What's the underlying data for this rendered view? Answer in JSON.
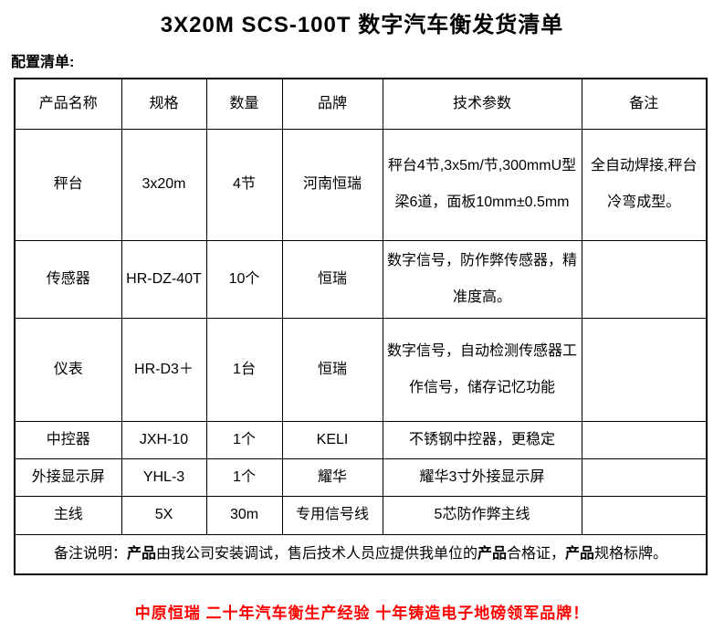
{
  "page": {
    "title": "3X20M SCS-100T 数字汽车衡发货清单",
    "section_label": "配置清单:",
    "footer_slogan": "中原恒瑞 二十年汽车衡生产经验 十年铸造电子地磅领军品牌！",
    "colors": {
      "text": "#000000",
      "slogan_red": "#FF0000",
      "border": "#000000",
      "background": "#FFFFFF"
    }
  },
  "table": {
    "headers": [
      "产品名称",
      "规格",
      "数量",
      "品牌",
      "技术参数",
      "备注"
    ],
    "rows": [
      {
        "name": "秤台",
        "spec": "3x20m",
        "qty": "4节",
        "brand": "河南恒瑞",
        "tech": "秤台4节,3x5m/节,300mmU型梁6道，面板10mm±0.5mm",
        "note": "全自动焊接,秤台冷弯成型。"
      },
      {
        "name": "传感器",
        "spec": "HR-DZ-40T",
        "qty": "10个",
        "brand": "恒瑞",
        "tech": "数字信号，防作弊传感器，精准度高。",
        "note": ""
      },
      {
        "name": "仪表",
        "spec": "HR-D3＋",
        "qty": "1台",
        "brand": "恒瑞",
        "tech": "数字信号，自动检测传感器工作信号，储存记忆功能",
        "note": ""
      },
      {
        "name": "中控器",
        "spec": "JXH-10",
        "qty": "1个",
        "brand": "KELI",
        "tech": "不锈钢中控器，更稳定",
        "note": ""
      },
      {
        "name": "外接显示屏",
        "spec": "YHL-3",
        "qty": "1个",
        "brand": "耀华",
        "tech": "耀华3寸外接显示屏",
        "note": ""
      },
      {
        "name": "主线",
        "spec": "5X",
        "qty": "30m",
        "brand": "专用信号线",
        "tech": "5芯防作弊主线",
        "note": ""
      }
    ],
    "footnote_segments": [
      {
        "text": "备注说明：",
        "bold": false
      },
      {
        "text": "产品",
        "bold": true
      },
      {
        "text": "由我公司安装调试，售后技术人员应提供我单位的",
        "bold": false
      },
      {
        "text": "产品",
        "bold": true
      },
      {
        "text": "合格证，",
        "bold": false
      },
      {
        "text": "产品",
        "bold": true
      },
      {
        "text": "规格标牌。",
        "bold": false
      }
    ]
  }
}
